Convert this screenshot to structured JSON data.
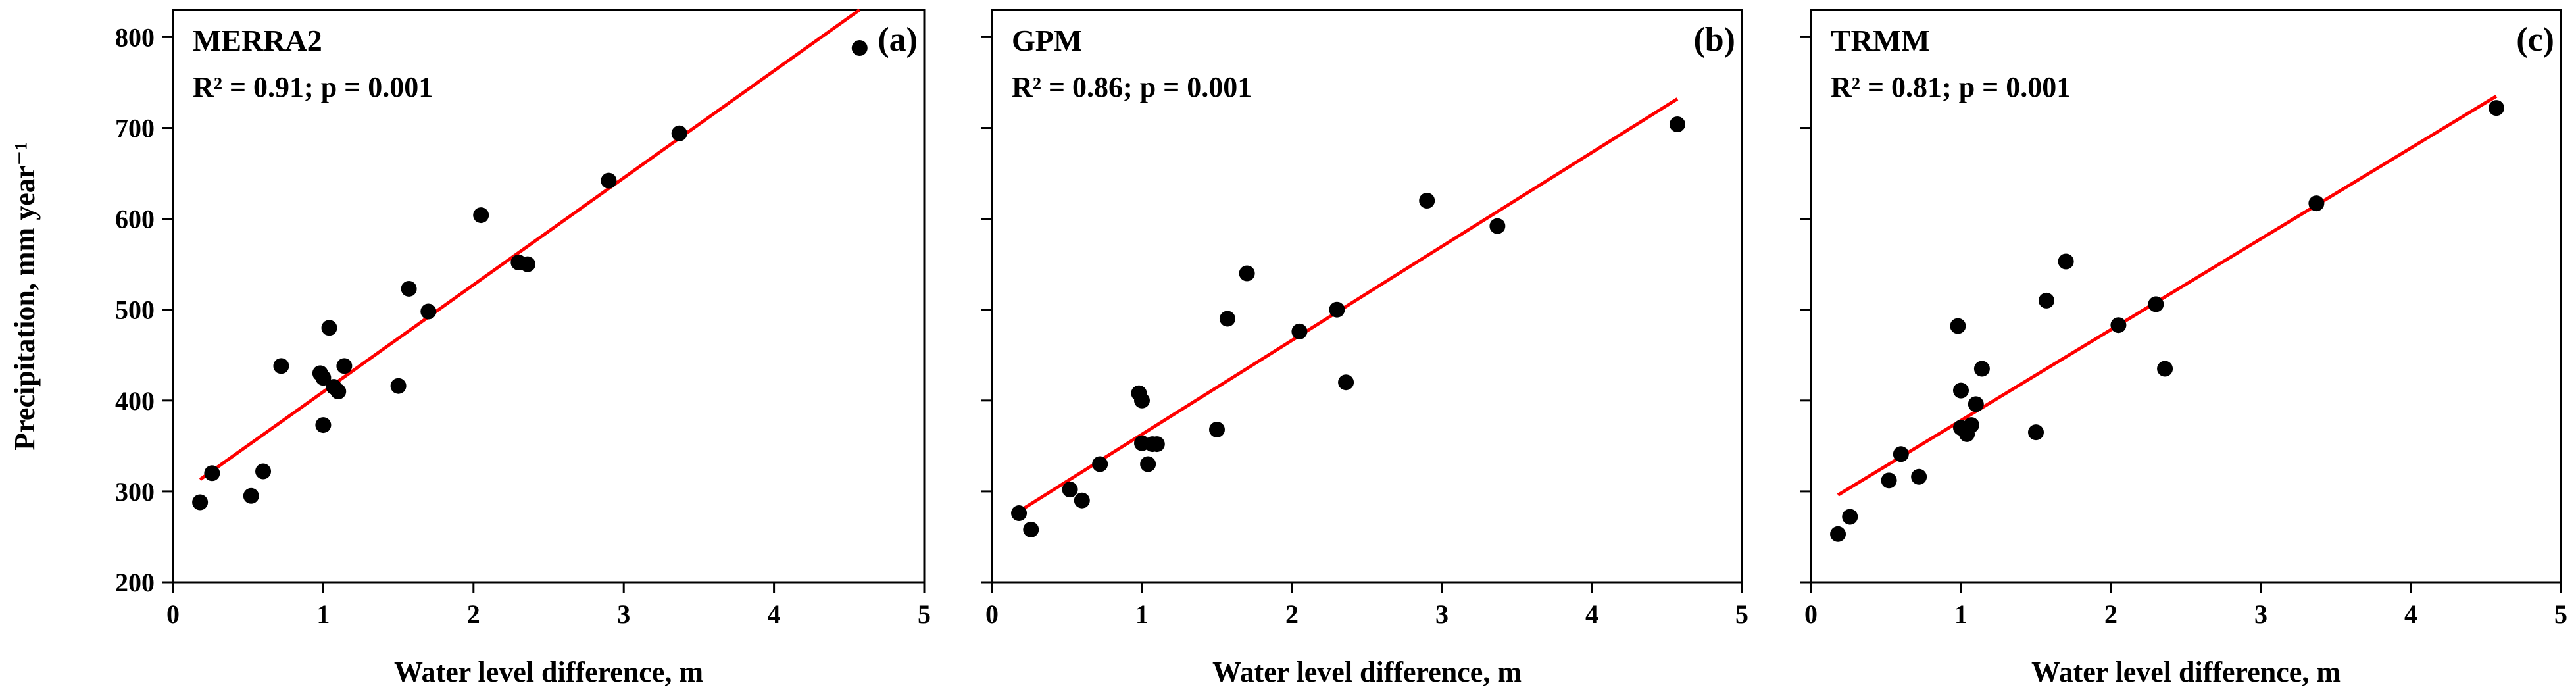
{
  "chart_data": [
    {
      "type": "scatter",
      "panel_label": "(a)",
      "series_name": "MERRA2",
      "r2_text": "R² = 0.91;  p = 0.001",
      "xlabel": "Water  level  difference,  m",
      "ylabel": "Precipitation,  mm year⁻¹",
      "xlim": [
        0,
        5
      ],
      "ylim": [
        200,
        830
      ],
      "xticks": [
        0,
        1,
        2,
        3,
        4,
        5
      ],
      "yticks": [
        200,
        300,
        400,
        500,
        600,
        700,
        800
      ],
      "points": [
        [
          0.18,
          288
        ],
        [
          0.26,
          320
        ],
        [
          0.52,
          295
        ],
        [
          0.6,
          322
        ],
        [
          0.72,
          438
        ],
        [
          0.98,
          430
        ],
        [
          1.0,
          373
        ],
        [
          1.0,
          425
        ],
        [
          1.04,
          480
        ],
        [
          1.07,
          415
        ],
        [
          1.1,
          410
        ],
        [
          1.14,
          438
        ],
        [
          1.5,
          416
        ],
        [
          1.57,
          523
        ],
        [
          1.7,
          498
        ],
        [
          2.05,
          604
        ],
        [
          2.3,
          552
        ],
        [
          2.36,
          550
        ],
        [
          2.9,
          642
        ],
        [
          3.37,
          694
        ],
        [
          4.57,
          788
        ]
      ],
      "fit": {
        "x": [
          0.18,
          4.57
        ],
        "y": [
          313,
          830
        ]
      }
    },
    {
      "type": "scatter",
      "panel_label": "(b)",
      "series_name": "GPM",
      "r2_text": "R² = 0.86;  p = 0.001",
      "xlabel": "Water  level  difference,  m",
      "xlim": [
        0,
        5
      ],
      "ylim": [
        200,
        830
      ],
      "xticks": [
        0,
        1,
        2,
        3,
        4,
        5
      ],
      "yticks": [
        200,
        300,
        400,
        500,
        600,
        700,
        800
      ],
      "points": [
        [
          0.18,
          276
        ],
        [
          0.26,
          258
        ],
        [
          0.52,
          302
        ],
        [
          0.6,
          290
        ],
        [
          0.72,
          330
        ],
        [
          0.98,
          408
        ],
        [
          1.0,
          400
        ],
        [
          1.0,
          353
        ],
        [
          1.04,
          330
        ],
        [
          1.07,
          352
        ],
        [
          1.1,
          352
        ],
        [
          1.5,
          368
        ],
        [
          1.57,
          490
        ],
        [
          1.7,
          540
        ],
        [
          2.05,
          476
        ],
        [
          2.3,
          500
        ],
        [
          2.36,
          420
        ],
        [
          2.9,
          620
        ],
        [
          3.37,
          592
        ],
        [
          4.57,
          704
        ]
      ],
      "fit": {
        "x": [
          0.18,
          4.57
        ],
        "y": [
          278,
          732
        ]
      }
    },
    {
      "type": "scatter",
      "panel_label": "(c)",
      "series_name": "TRMM",
      "r2_text": "R² = 0.81;  p = 0.001",
      "xlabel": "Water  level  difference,  m",
      "xlim": [
        0,
        5
      ],
      "ylim": [
        200,
        830
      ],
      "xticks": [
        0,
        1,
        2,
        3,
        4,
        5
      ],
      "yticks": [
        200,
        300,
        400,
        500,
        600,
        700,
        800
      ],
      "points": [
        [
          0.18,
          253
        ],
        [
          0.26,
          272
        ],
        [
          0.52,
          312
        ],
        [
          0.6,
          341
        ],
        [
          0.72,
          316
        ],
        [
          0.98,
          482
        ],
        [
          1.0,
          411
        ],
        [
          1.0,
          370
        ],
        [
          1.04,
          363
        ],
        [
          1.07,
          373
        ],
        [
          1.1,
          396
        ],
        [
          1.14,
          435
        ],
        [
          1.5,
          365
        ],
        [
          1.57,
          510
        ],
        [
          1.7,
          553
        ],
        [
          2.05,
          483
        ],
        [
          2.3,
          506
        ],
        [
          2.36,
          435
        ],
        [
          3.37,
          617
        ],
        [
          4.57,
          722
        ]
      ],
      "fit": {
        "x": [
          0.18,
          4.57
        ],
        "y": [
          296,
          735
        ]
      }
    }
  ],
  "colors": {
    "points": "#000000",
    "fit_line": "#ff0000",
    "axes": "#000000"
  }
}
